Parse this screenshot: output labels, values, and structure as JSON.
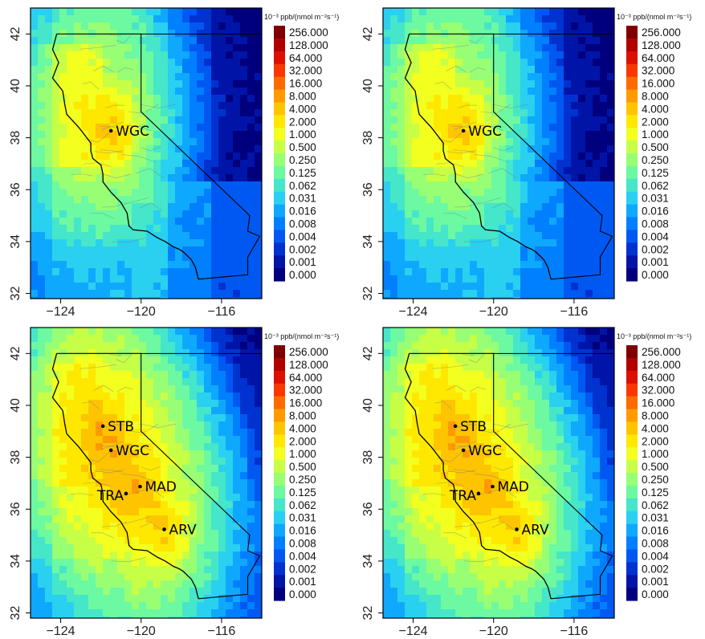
{
  "chart_data": [
    {
      "type": "heatmap",
      "panel": "top-left",
      "xticks": [
        "-124",
        "-120",
        "-116"
      ],
      "yticks": [
        "32",
        "34",
        "36",
        "38",
        "40",
        "42"
      ],
      "xlim": [
        -125.5,
        -114.0
      ],
      "ylim": [
        31.8,
        43.0
      ],
      "colorbar_title": "10⁻³ ppb/(nmol m⁻²s⁻¹)",
      "colorbar_levels": [
        "256.000",
        "128.000",
        "64.000",
        "32.000",
        "16.000",
        "8.000",
        "4.000",
        "2.000",
        "1.000",
        "0.500",
        "0.250",
        "0.125",
        "0.062",
        "0.031",
        "0.016",
        "0.008",
        "0.004",
        "0.002",
        "0.001",
        "0.000"
      ],
      "sites": [
        {
          "name": "WGC",
          "lon": -121.5,
          "lat": 38.27
        }
      ]
    },
    {
      "type": "heatmap",
      "panel": "top-right",
      "xticks": [
        "-124",
        "-120",
        "-116"
      ],
      "yticks": [
        "32",
        "34",
        "36",
        "38",
        "40",
        "42"
      ],
      "xlim": [
        -125.5,
        -114.0
      ],
      "ylim": [
        31.8,
        43.0
      ],
      "colorbar_title": "10⁻³ ppb/(nmol m⁻²s⁻¹)",
      "colorbar_levels": [
        "256.000",
        "128.000",
        "64.000",
        "32.000",
        "16.000",
        "8.000",
        "4.000",
        "2.000",
        "1.000",
        "0.500",
        "0.250",
        "0.125",
        "0.062",
        "0.031",
        "0.016",
        "0.008",
        "0.004",
        "0.002",
        "0.001",
        "0.000"
      ],
      "sites": [
        {
          "name": "WGC",
          "lon": -121.5,
          "lat": 38.27
        }
      ]
    },
    {
      "type": "heatmap",
      "panel": "bottom-left",
      "xticks": [
        "-124",
        "-120",
        "-116"
      ],
      "yticks": [
        "32",
        "34",
        "36",
        "38",
        "40",
        "42"
      ],
      "xlim": [
        -125.5,
        -114.0
      ],
      "ylim": [
        31.8,
        43.0
      ],
      "colorbar_title": "10⁻³ ppb/(nmol m⁻²s⁻¹)",
      "colorbar_levels": [
        "256.000",
        "128.000",
        "64.000",
        "32.000",
        "16.000",
        "8.000",
        "4.000",
        "2.000",
        "1.000",
        "0.500",
        "0.250",
        "0.125",
        "0.062",
        "0.031",
        "0.016",
        "0.008",
        "0.004",
        "0.002",
        "0.001",
        "0.000"
      ],
      "sites": [
        {
          "name": "STB",
          "lon": -121.9,
          "lat": 39.2
        },
        {
          "name": "WGC",
          "lon": -121.5,
          "lat": 38.27
        },
        {
          "name": "TRA",
          "lon": -120.75,
          "lat": 36.6
        },
        {
          "name": "MAD",
          "lon": -120.05,
          "lat": 36.87
        },
        {
          "name": "ARV",
          "lon": -118.85,
          "lat": 35.22
        }
      ]
    },
    {
      "type": "heatmap",
      "panel": "bottom-right",
      "xticks": [
        "-124",
        "-120",
        "-116"
      ],
      "yticks": [
        "32",
        "34",
        "36",
        "38",
        "40",
        "42"
      ],
      "xlim": [
        -125.5,
        -114.0
      ],
      "ylim": [
        31.8,
        43.0
      ],
      "colorbar_title": "10⁻³ ppb/(nmol m⁻²s⁻¹)",
      "colorbar_levels": [
        "256.000",
        "128.000",
        "64.000",
        "32.000",
        "16.000",
        "8.000",
        "4.000",
        "2.000",
        "1.000",
        "0.500",
        "0.250",
        "0.125",
        "0.062",
        "0.031",
        "0.016",
        "0.008",
        "0.004",
        "0.002",
        "0.001",
        "0.000"
      ],
      "sites": [
        {
          "name": "STB",
          "lon": -121.9,
          "lat": 39.2
        },
        {
          "name": "WGC",
          "lon": -121.5,
          "lat": 38.27
        },
        {
          "name": "TRA",
          "lon": -120.75,
          "lat": 36.6
        },
        {
          "name": "MAD",
          "lon": -120.05,
          "lat": 36.87
        },
        {
          "name": "ARV",
          "lon": -118.85,
          "lat": 35.22
        }
      ]
    }
  ],
  "colors": {
    "colorbar_palette": [
      "#7f0000",
      "#b00000",
      "#dd1000",
      "#f83800",
      "#ff6a00",
      "#ff9a00",
      "#ffc400",
      "#ffe800",
      "#f3ff1e",
      "#c7ff47",
      "#98ff74",
      "#6cf9a1",
      "#45e6c9",
      "#2ad0f0",
      "#0fa8ff",
      "#0080ff",
      "#0058f2",
      "#0032cf",
      "#0015a8",
      "#00007e"
    ],
    "land_outline": "#000000",
    "county_lines": "#6a7f8c",
    "site_marker": "#000000"
  }
}
